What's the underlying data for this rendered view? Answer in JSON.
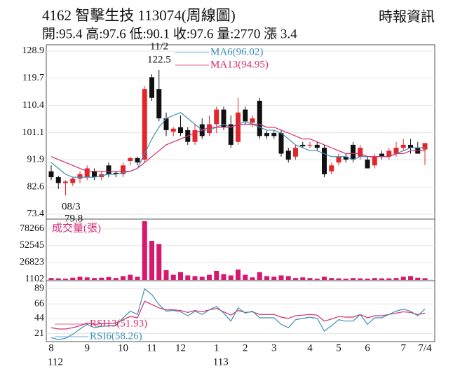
{
  "header": {
    "title": "4162  智擊生技 113074(周線圖)",
    "source": "時報資訊",
    "summary": "開:95.4 高:97.6 低:90.1 收:97.6 量:2770 漲 3.4"
  },
  "chart_data": {
    "type": "candlestick",
    "categories": [
      "8",
      null,
      null,
      null,
      null,
      "9",
      null,
      null,
      null,
      null,
      "10",
      null,
      null,
      null,
      "11",
      null,
      null,
      null,
      "12",
      null,
      null,
      null,
      null,
      "1",
      null,
      null,
      null,
      "2",
      null,
      null,
      null,
      "3",
      null,
      null,
      null,
      null,
      "4",
      null,
      null,
      null,
      "5",
      null,
      null,
      null,
      "6",
      null,
      null,
      null,
      null,
      "7",
      null,
      null,
      "7/4"
    ],
    "year_labels": [
      "112",
      null,
      null,
      null,
      null,
      null,
      null,
      null,
      null,
      null,
      null,
      null,
      null,
      null,
      null,
      null,
      null,
      null,
      null,
      null,
      null,
      null,
      null,
      "113",
      null,
      null,
      null,
      null,
      null,
      null,
      null,
      null,
      null,
      null,
      null,
      null,
      null,
      null,
      null,
      null,
      null,
      null,
      null,
      null,
      null,
      null,
      null,
      null,
      null,
      null,
      null,
      null,
      null
    ],
    "open": [
      88,
      86,
      84,
      84,
      85.5,
      86,
      88,
      86,
      90,
      87.5,
      87,
      91.5,
      92.5,
      92,
      120,
      116,
      106,
      101.5,
      103,
      102,
      98,
      104,
      101,
      104,
      109,
      104,
      98,
      109,
      104.5,
      112,
      101,
      101,
      101,
      95,
      93,
      97,
      97,
      97,
      96,
      88,
      91,
      93,
      97,
      93,
      92,
      90,
      94,
      93,
      94,
      96,
      97,
      96,
      95.4
    ],
    "high": [
      90,
      86.5,
      85,
      86,
      88,
      90,
      89,
      88,
      91,
      88,
      91,
      93,
      93,
      117,
      121,
      122.5,
      108,
      103,
      107,
      103,
      104,
      106,
      107,
      110,
      110,
      107,
      113,
      110,
      107,
      113,
      102,
      102,
      102,
      96,
      97,
      98,
      98,
      98,
      97,
      91,
      94,
      94,
      98,
      97,
      93,
      94,
      95,
      96,
      98,
      99,
      99,
      98,
      97.6
    ],
    "low": [
      85,
      82,
      79.8,
      83,
      84,
      85,
      85,
      85,
      86,
      86,
      86,
      90,
      90,
      91,
      112,
      105,
      100,
      100,
      100,
      97,
      97,
      99,
      100,
      101,
      102,
      96,
      97,
      104,
      103,
      99,
      99,
      99,
      93,
      91,
      92,
      96,
      96,
      95,
      86,
      87,
      90,
      91,
      91,
      92,
      89,
      89,
      92,
      92,
      93,
      95,
      94,
      94,
      90.1
    ],
    "close": [
      86,
      84,
      84.5,
      85.5,
      87,
      89,
      86,
      87,
      87,
      87,
      90,
      92.5,
      91,
      116,
      113,
      106,
      102,
      102.5,
      101,
      98,
      102,
      100,
      104,
      109,
      103,
      97,
      108,
      105,
      106,
      100,
      100,
      100,
      94,
      92,
      96,
      96.5,
      97,
      96,
      87,
      90,
      93,
      92,
      92,
      96,
      89,
      93,
      93,
      95,
      96,
      97,
      96,
      94,
      97.6
    ],
    "up_color": "#e3262b",
    "down_color": "#111111",
    "ylim": [
      73.4,
      128.9
    ],
    "yticks": [
      128.9,
      119.7,
      110.4,
      101.1,
      91.9,
      82.6,
      73.4
    ],
    "series": [
      {
        "name": "MA6(96.02)",
        "color": "#3d8fb5",
        "values": [
          91,
          89,
          87,
          86,
          86,
          86,
          86,
          86.5,
          87,
          87,
          87.5,
          88,
          89,
          94,
          99,
          103,
          106,
          107,
          108,
          106,
          104,
          102,
          102,
          103,
          104,
          103,
          104,
          105,
          104,
          103,
          102,
          102,
          101,
          99,
          97,
          96,
          95,
          95,
          94,
          93,
          93,
          93,
          92,
          93,
          93,
          93,
          93,
          93,
          94,
          95,
          96,
          96,
          96.02
        ]
      },
      {
        "name": "MA13(94.95)",
        "color": "#d42e6a",
        "values": [
          93,
          92,
          91,
          90,
          89,
          88,
          88,
          88,
          88,
          88,
          88,
          88,
          89,
          91,
          93,
          95,
          97,
          98,
          99,
          100,
          101,
          102,
          103,
          103,
          103,
          103,
          104,
          104,
          104,
          104,
          103,
          103,
          102,
          101,
          100,
          99,
          99,
          98,
          97,
          96,
          95,
          94,
          94,
          94,
          93,
          93,
          93,
          93,
          94,
          94,
          95,
          95,
          94.95
        ]
      }
    ],
    "annotations": [
      "11/2",
      "122.5",
      "08/3",
      "79.8"
    ],
    "volume": {
      "label": "成交量(張)",
      "color": "#d6196f",
      "ylim": [
        0,
        90000
      ],
      "yticks": [
        78266,
        52545,
        26823,
        1102
      ],
      "values": [
        3000,
        2500,
        2000,
        3500,
        5000,
        4000,
        3000,
        3500,
        4500,
        3000,
        6000,
        8000,
        5000,
        90000,
        60000,
        55000,
        15000,
        8000,
        12000,
        7000,
        6000,
        5000,
        8000,
        14000,
        9000,
        7000,
        16000,
        8000,
        4000,
        12000,
        6000,
        5000,
        7000,
        6000,
        3000,
        4000,
        3000,
        2000,
        5000,
        3000,
        2500,
        2000,
        3000,
        2500,
        2000,
        3000,
        2500,
        2500,
        3000,
        5000,
        6000,
        3500,
        2770
      ]
    },
    "rsi": {
      "ylim": [
        10,
        100
      ],
      "yticks": [
        89,
        66,
        44,
        21
      ],
      "series": [
        {
          "name": "RSI13(51.93)",
          "color": "#d42e6a",
          "values": [
            30,
            28,
            28,
            30,
            33,
            37,
            35,
            36,
            36,
            37,
            42,
            47,
            45,
            70,
            65,
            60,
            57,
            57,
            56,
            53,
            56,
            54,
            57,
            59,
            54,
            49,
            56,
            53,
            54,
            50,
            50,
            50,
            46,
            44,
            48,
            49,
            50,
            49,
            40,
            43,
            47,
            46,
            46,
            50,
            45,
            48,
            48,
            50,
            52,
            54,
            53,
            50,
            51.93
          ]
        },
        {
          "name": "RSI6(58.26)",
          "color": "#3d8fb5",
          "values": [
            15,
            12,
            14,
            20,
            28,
            35,
            30,
            32,
            33,
            33,
            45,
            55,
            50,
            89,
            80,
            65,
            55,
            56,
            54,
            48,
            55,
            50,
            57,
            62,
            52,
            40,
            60,
            52,
            55,
            45,
            45,
            45,
            35,
            30,
            42,
            44,
            46,
            44,
            25,
            33,
            42,
            40,
            40,
            50,
            35,
            45,
            45,
            50,
            55,
            58,
            55,
            48,
            58.26
          ]
        }
      ]
    }
  }
}
